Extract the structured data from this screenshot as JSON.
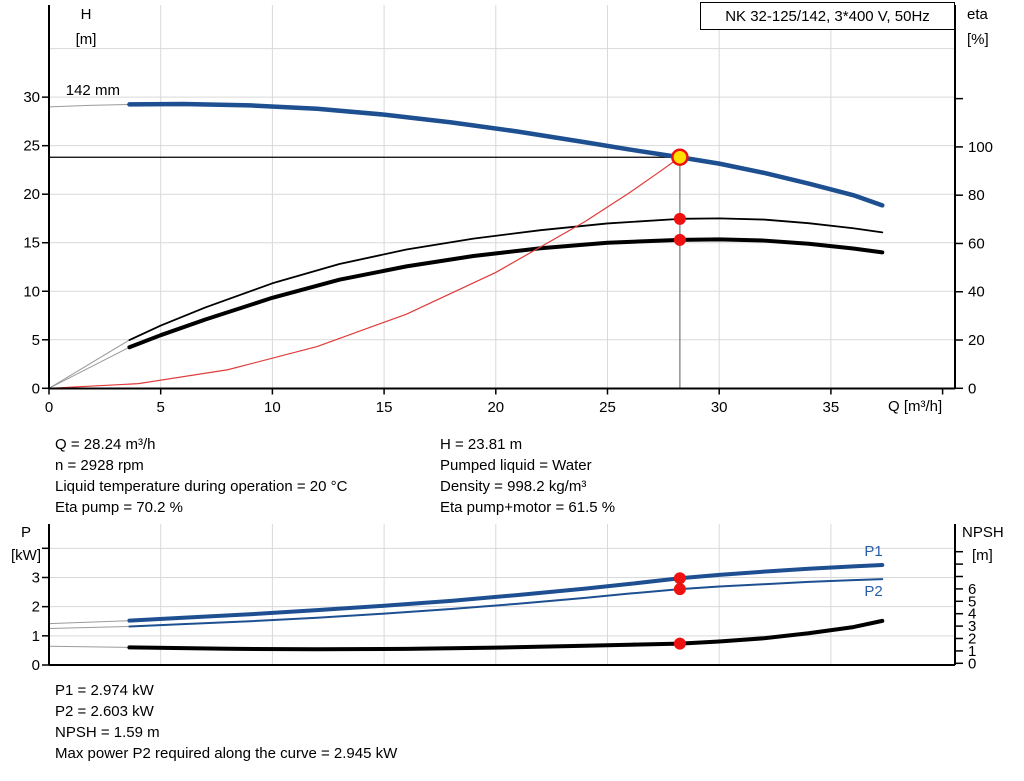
{
  "title_box": "NK 32-125/142, 3*400 V, 50Hz",
  "colors": {
    "blue": "#1d4f91",
    "label_blue": "#2a5caa",
    "red": "#e03a3a",
    "dot_red": "#ee1111",
    "yellow": "#ffdf00",
    "black": "#000000",
    "grid": "#d9d9d9",
    "gray_ext": "#9a9a9a",
    "guide_gray": "#808080"
  },
  "info_top": {
    "left": [
      "Q = 28.24 m³/h",
      "n = 2928 rpm",
      "Liquid temperature during operation = 20 °C",
      "Eta pump = 70.2 %"
    ],
    "right": [
      "H = 23.81 m",
      "Pumped liquid = Water",
      "Density = 998.2 kg/m³",
      "Eta pump+motor = 61.5 %"
    ]
  },
  "info_bottom": [
    "P1 = 2.974 kW",
    "P2 = 2.603 kW",
    "NPSH = 1.59 m",
    "Max power P2 required along the curve = 2.945 kW"
  ],
  "chart_data": [
    {
      "type": "line",
      "title": "NK 32-125/142, 3*400 V, 50Hz",
      "x_axis": {
        "label": "Q [m³/h]",
        "min": 0,
        "max": 40.6,
        "ticks": [
          0,
          5,
          10,
          15,
          20,
          25,
          30,
          35
        ],
        "unlabeled_ticks": [
          40
        ],
        "gridlines": [
          5,
          10,
          15,
          20,
          25,
          30,
          35
        ]
      },
      "y_left": {
        "label": [
          "H",
          "[m]"
        ],
        "unit": "m",
        "min": 0,
        "max": 39.5,
        "ticks": [
          0,
          5,
          10,
          15,
          20,
          25,
          30
        ],
        "unlabeled_ticks": [],
        "gridlines": [
          5,
          10,
          15,
          20,
          25,
          30,
          35
        ]
      },
      "y_right": {
        "label": [
          "eta",
          "[%]"
        ],
        "unit": "%",
        "min": 0,
        "max": 158,
        "ticks": [
          0,
          20,
          40,
          60,
          80,
          100
        ],
        "unlabeled_ticks": [
          120
        ]
      },
      "series": [
        {
          "name": "head-curve-142mm",
          "y_axis": "left",
          "color": "blue",
          "width": 4.5,
          "ext": [
            [
              0,
              29.0
            ],
            [
              1.8,
              29.15
            ],
            [
              3.6,
              29.25
            ]
          ],
          "points": [
            [
              3.6,
              29.25
            ],
            [
              6,
              29.3
            ],
            [
              9,
              29.15
            ],
            [
              12,
              28.8
            ],
            [
              15,
              28.2
            ],
            [
              18,
              27.4
            ],
            [
              21,
              26.45
            ],
            [
              24,
              25.35
            ],
            [
              26,
              24.6
            ],
            [
              28.24,
              23.81
            ],
            [
              30,
              23.15
            ],
            [
              32,
              22.2
            ],
            [
              34,
              21.1
            ],
            [
              36,
              19.9
            ],
            [
              37.3,
              18.85
            ]
          ]
        },
        {
          "name": "eta-pump-curve",
          "y_axis": "right",
          "color": "black",
          "width": 1.8,
          "ext": [
            [
              0,
              0
            ],
            [
              3.6,
              20
            ]
          ],
          "points": [
            [
              3.6,
              20
            ],
            [
              5,
              26
            ],
            [
              7,
              33.5
            ],
            [
              10,
              43.5
            ],
            [
              13,
              51.5
            ],
            [
              16,
              57.5
            ],
            [
              19,
              62
            ],
            [
              22,
              65.5
            ],
            [
              25,
              68.3
            ],
            [
              28.24,
              70.2
            ],
            [
              30,
              70.4
            ],
            [
              32,
              69.9
            ],
            [
              34,
              68.4
            ],
            [
              36,
              66.3
            ],
            [
              37.3,
              64.6
            ]
          ]
        },
        {
          "name": "eta-pump-motor-curve",
          "y_axis": "right",
          "color": "black",
          "width": 4,
          "ext": [
            [
              0,
              0
            ],
            [
              3.6,
              17
            ]
          ],
          "points": [
            [
              3.6,
              17
            ],
            [
              5,
              22
            ],
            [
              7,
              28.5
            ],
            [
              10,
              37.5
            ],
            [
              13,
              45
            ],
            [
              16,
              50.5
            ],
            [
              19,
              54.8
            ],
            [
              22,
              58
            ],
            [
              25,
              60.3
            ],
            [
              28.24,
              61.5
            ],
            [
              30,
              61.7
            ],
            [
              32,
              61.2
            ],
            [
              34,
              59.9
            ],
            [
              36,
              57.9
            ],
            [
              37.3,
              56.3
            ]
          ]
        },
        {
          "name": "system-curve",
          "y_axis": "left",
          "color": "red",
          "width": 1.2,
          "points": [
            [
              0,
              0
            ],
            [
              4,
              0.48
            ],
            [
              8,
              1.91
            ],
            [
              12,
              4.3
            ],
            [
              16,
              7.64
            ],
            [
              20,
              11.94
            ],
            [
              24,
              17.19
            ],
            [
              26,
              20.18
            ],
            [
              27.2,
              22.1
            ],
            [
              28.24,
              23.81
            ]
          ]
        }
      ],
      "guides": [
        {
          "type": "h",
          "y_axis": "left",
          "v": 23.81,
          "q_from": 0,
          "q_to": 28.24,
          "color": "black"
        },
        {
          "type": "v",
          "q": 28.24,
          "y_axis": "left",
          "v_from": 0,
          "v_to": 23.81,
          "color": "guide_gray"
        }
      ],
      "markers": [
        {
          "name": "duty-point-head",
          "q": 28.24,
          "y_axis": "left",
          "v": 23.81,
          "style": "duty"
        },
        {
          "name": "duty-point-eta-pump",
          "q": 28.24,
          "y_axis": "right",
          "v": 70.2,
          "style": "red"
        },
        {
          "name": "duty-point-eta-pump-motor",
          "q": 28.24,
          "y_axis": "right",
          "v": 61.5,
          "style": "red"
        }
      ],
      "annotations": [
        {
          "name": "impeller-diameter-label",
          "text": "142 mm",
          "q": 0.75,
          "y_axis": "left",
          "v": 30.2,
          "color": "black"
        }
      ]
    },
    {
      "type": "line",
      "x_axis": {
        "label": "",
        "min": 0,
        "max": 40.6,
        "ticks": [],
        "unlabeled_ticks": [],
        "gridlines": [
          5,
          10,
          15,
          20,
          25,
          30,
          35
        ]
      },
      "y_left": {
        "label": [
          "P",
          "[kW]"
        ],
        "unit": "kW",
        "min": 0,
        "max": 4.8,
        "ticks": [
          0,
          1,
          2,
          3
        ],
        "unlabeled_ticks": [
          4
        ],
        "gridlines": [
          1,
          2,
          3,
          4
        ]
      },
      "y_right": {
        "label": [
          "NPSH",
          "[m]"
        ],
        "unit": "m",
        "min": 0,
        "max": 11.2,
        "ticks": [
          0,
          1,
          2,
          3,
          4,
          5,
          6
        ],
        "unlabeled_ticks": [
          7,
          8,
          9
        ]
      },
      "series": [
        {
          "name": "p1-power-curve",
          "y_axis": "left",
          "color": "blue",
          "width": 4,
          "ext": [
            [
              0,
              1.42
            ],
            [
              3.6,
              1.52
            ]
          ],
          "points": [
            [
              3.6,
              1.52
            ],
            [
              6,
              1.62
            ],
            [
              9,
              1.74
            ],
            [
              12,
              1.88
            ],
            [
              15,
              2.03
            ],
            [
              18,
              2.2
            ],
            [
              21,
              2.4
            ],
            [
              24,
              2.62
            ],
            [
              26,
              2.78
            ],
            [
              28.24,
              2.974
            ],
            [
              30,
              3.09
            ],
            [
              32,
              3.2
            ],
            [
              34,
              3.3
            ],
            [
              36,
              3.38
            ],
            [
              37.3,
              3.43
            ]
          ]
        },
        {
          "name": "p2-power-curve",
          "y_axis": "left",
          "color": "blue",
          "width": 2,
          "ext": [
            [
              0,
              1.25
            ],
            [
              3.6,
              1.32
            ]
          ],
          "points": [
            [
              3.6,
              1.32
            ],
            [
              6,
              1.4
            ],
            [
              9,
              1.5
            ],
            [
              12,
              1.62
            ],
            [
              15,
              1.76
            ],
            [
              18,
              1.92
            ],
            [
              21,
              2.1
            ],
            [
              24,
              2.3
            ],
            [
              26,
              2.45
            ],
            [
              28.24,
              2.603
            ],
            [
              30,
              2.69
            ],
            [
              32,
              2.77
            ],
            [
              34,
              2.85
            ],
            [
              36,
              2.91
            ],
            [
              37.3,
              2.945
            ]
          ]
        },
        {
          "name": "npsh-curve",
          "y_axis": "right",
          "color": "black",
          "width": 4,
          "ext": [
            [
              0,
              1.38
            ],
            [
              3.6,
              1.28
            ]
          ],
          "points": [
            [
              3.6,
              1.28
            ],
            [
              8,
              1.17
            ],
            [
              12,
              1.13
            ],
            [
              16,
              1.16
            ],
            [
              20,
              1.26
            ],
            [
              24,
              1.42
            ],
            [
              26,
              1.5
            ],
            [
              28.24,
              1.59
            ],
            [
              30,
              1.76
            ],
            [
              32,
              2.02
            ],
            [
              34,
              2.42
            ],
            [
              36,
              2.92
            ],
            [
              37.3,
              3.42
            ]
          ]
        }
      ],
      "guides": [],
      "markers": [
        {
          "name": "duty-point-p1",
          "q": 28.24,
          "y_axis": "left",
          "v": 2.974,
          "style": "red"
        },
        {
          "name": "duty-point-p2",
          "q": 28.24,
          "y_axis": "left",
          "v": 2.603,
          "style": "red"
        },
        {
          "name": "duty-point-npsh",
          "q": 28.24,
          "y_axis": "right",
          "v": 1.59,
          "style": "red"
        }
      ],
      "annotations": [
        {
          "name": "p1-curve-label",
          "text": "P1",
          "q": 36.5,
          "y_axis": "left",
          "v": 3.74,
          "color": "label_blue"
        },
        {
          "name": "p2-curve-label",
          "text": "P2",
          "q": 36.5,
          "y_axis": "left",
          "v": 2.365,
          "color": "label_blue"
        }
      ]
    }
  ]
}
